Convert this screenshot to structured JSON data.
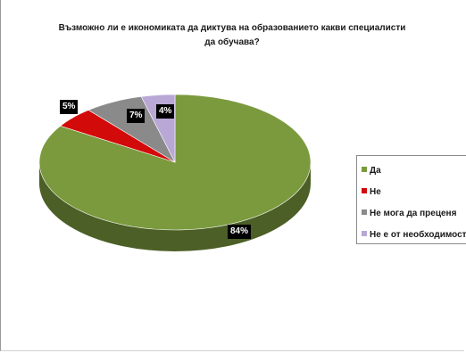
{
  "chart_data": {
    "type": "pie",
    "title_lines": [
      "Възможно ли е икономиката да диктува на образованието какви специалисти",
      "да обучава?"
    ],
    "labels": [
      "Да",
      "Не",
      "Не мога да преценя",
      "Не е от необходимост"
    ],
    "values": [
      84,
      5,
      7,
      4
    ],
    "value_labels": [
      "84%",
      "5%",
      "7%",
      "4%"
    ],
    "colors": [
      "#7a9a3d",
      "#d20a0a",
      "#8a8a8a",
      "#b9a8d6"
    ],
    "legend_position": "right",
    "style": "3d"
  }
}
